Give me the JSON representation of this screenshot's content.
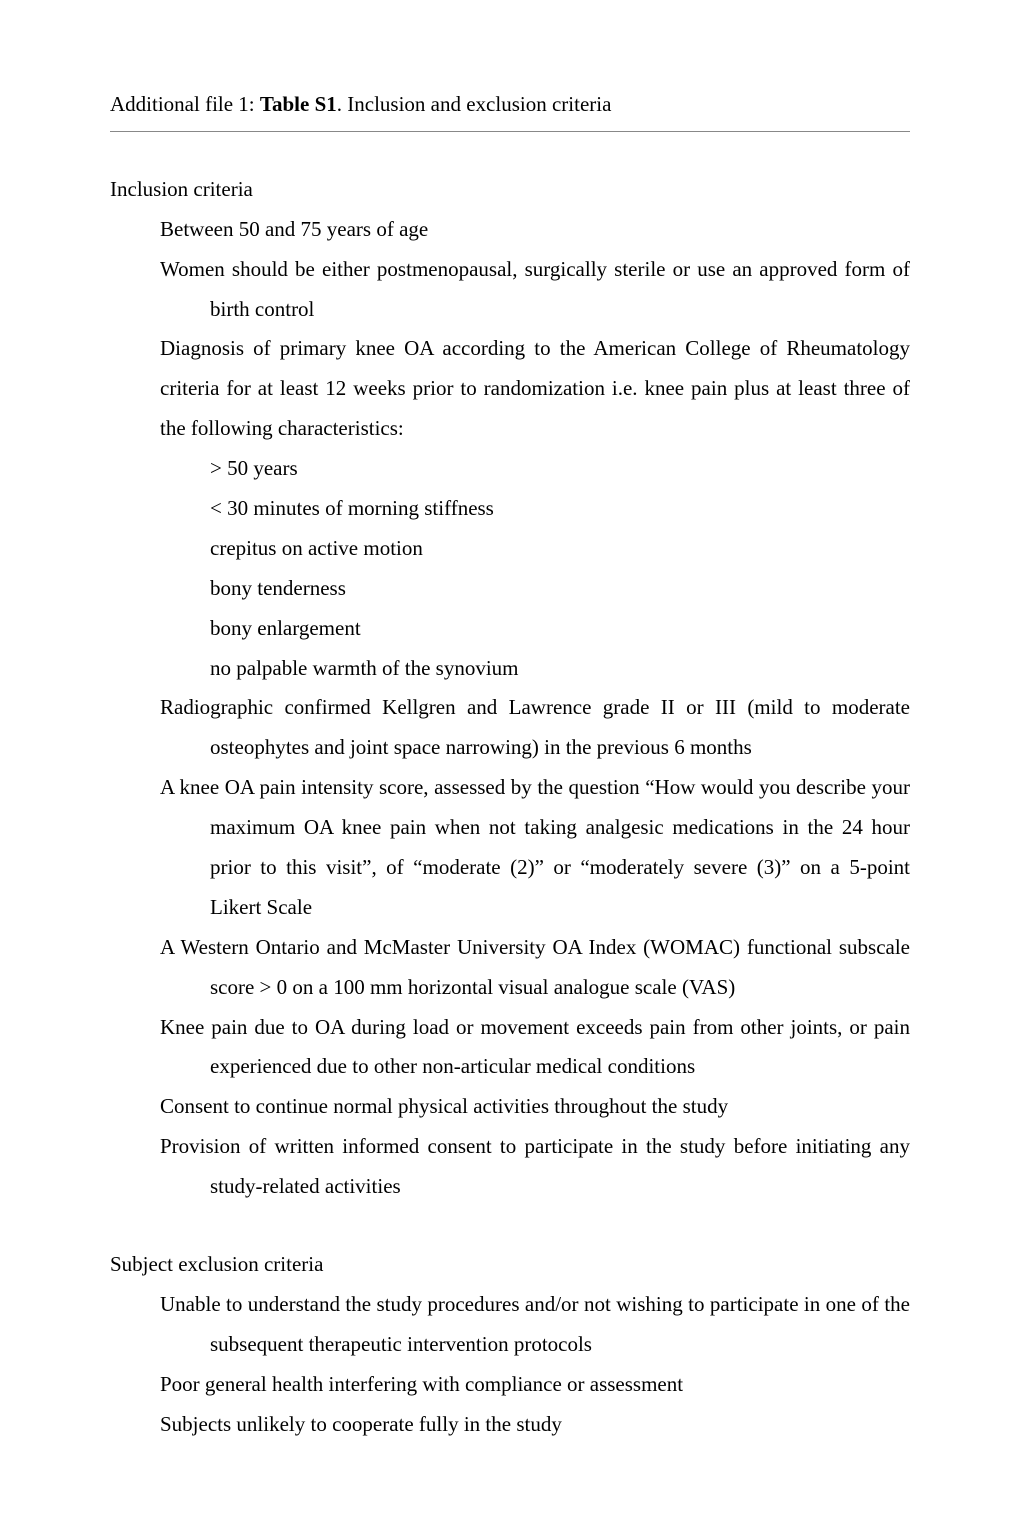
{
  "title": {
    "prefix": "Additional file 1: ",
    "bold": "Table S1",
    "suffix": ". Inclusion and exclusion criteria"
  },
  "inclusion": {
    "heading": "Inclusion criteria",
    "items": {
      "age": "Between 50 and 75 years of age",
      "women": "Women should be either postmenopausal, surgically sterile or use an approved form of birth control",
      "diagnosis": "Diagnosis of primary knee OA according to the American College of Rheumatology criteria for at least 12 weeks prior to randomization i.e. knee pain plus at least three of the following characteristics:",
      "diag_sub": {
        "a": "> 50 years",
        "b": "< 30 minutes of morning stiffness",
        "c": "crepitus on active motion",
        "d": "bony tenderness",
        "e": "bony enlargement",
        "f": "no palpable warmth of the synovium"
      },
      "radiographic": "Radiographic confirmed Kellgren and Lawrence grade II or III (mild to moderate osteophytes and joint space narrowing) in the previous 6 months",
      "pain_score": "A knee OA pain intensity score, assessed by the question “How would you describe your maximum OA knee pain when not taking analgesic medications in the 24 hour prior to this visit”, of “moderate (2)” or “moderately severe (3)” on a 5-point Likert Scale",
      "womac": "A Western Ontario and McMaster University OA Index (WOMAC) functional subscale score > 0 on a 100 mm horizontal visual analogue scale (VAS)",
      "knee_pain": "Knee pain due to OA during load or movement exceeds pain from other joints, or pain experienced due to other non-articular medical conditions",
      "consent_activities": "Consent to continue normal physical activities throughout the study",
      "written_consent": "Provision of written informed consent to participate in the study before initiating any study-related activities"
    }
  },
  "exclusion": {
    "heading": "Subject exclusion criteria",
    "items": {
      "unable": "Unable to understand the study procedures and/or not wishing to participate in one of the subsequent therapeutic intervention protocols",
      "poor_health": "Poor general health interfering with compliance or assessment",
      "unlikely": "Subjects unlikely to cooperate fully in the study"
    }
  }
}
